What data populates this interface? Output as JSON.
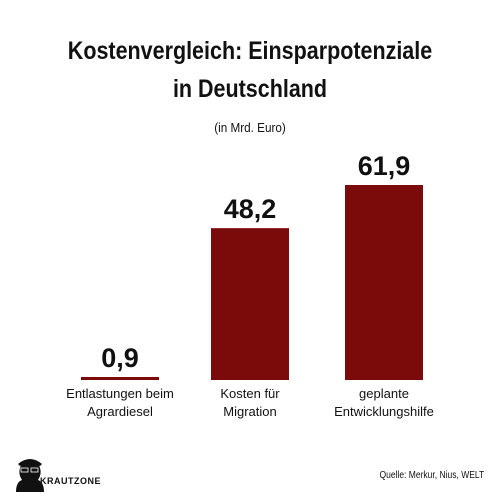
{
  "title_line1": "Kostenvergleich: Einsparpotenziale",
  "title_line2": "in Deutschland",
  "subtitle": "(in Mrd. Euro)",
  "source": "Quelle: Merkur, Nius, WELT",
  "logo_text": "KRAUTZONE",
  "colors": {
    "bar": "#7b0a0a",
    "text": "#111111"
  },
  "chart_data": {
    "type": "bar",
    "title": "Kostenvergleich: Einsparpotenziale in Deutschland",
    "subtitle": "(in Mrd. Euro)",
    "categories": [
      [
        "Entlastungen beim",
        "Agrardiesel"
      ],
      [
        "Kosten für",
        "Migration"
      ],
      [
        "geplante",
        "Entwicklungshilfe"
      ]
    ],
    "values": [
      0.9,
      48.2,
      61.9
    ],
    "value_labels": [
      "0,9",
      "48,2",
      "61,9"
    ],
    "xlabel": "",
    "ylabel": "",
    "ylim": [
      0,
      61.9
    ],
    "grid": false,
    "legend": "none"
  }
}
